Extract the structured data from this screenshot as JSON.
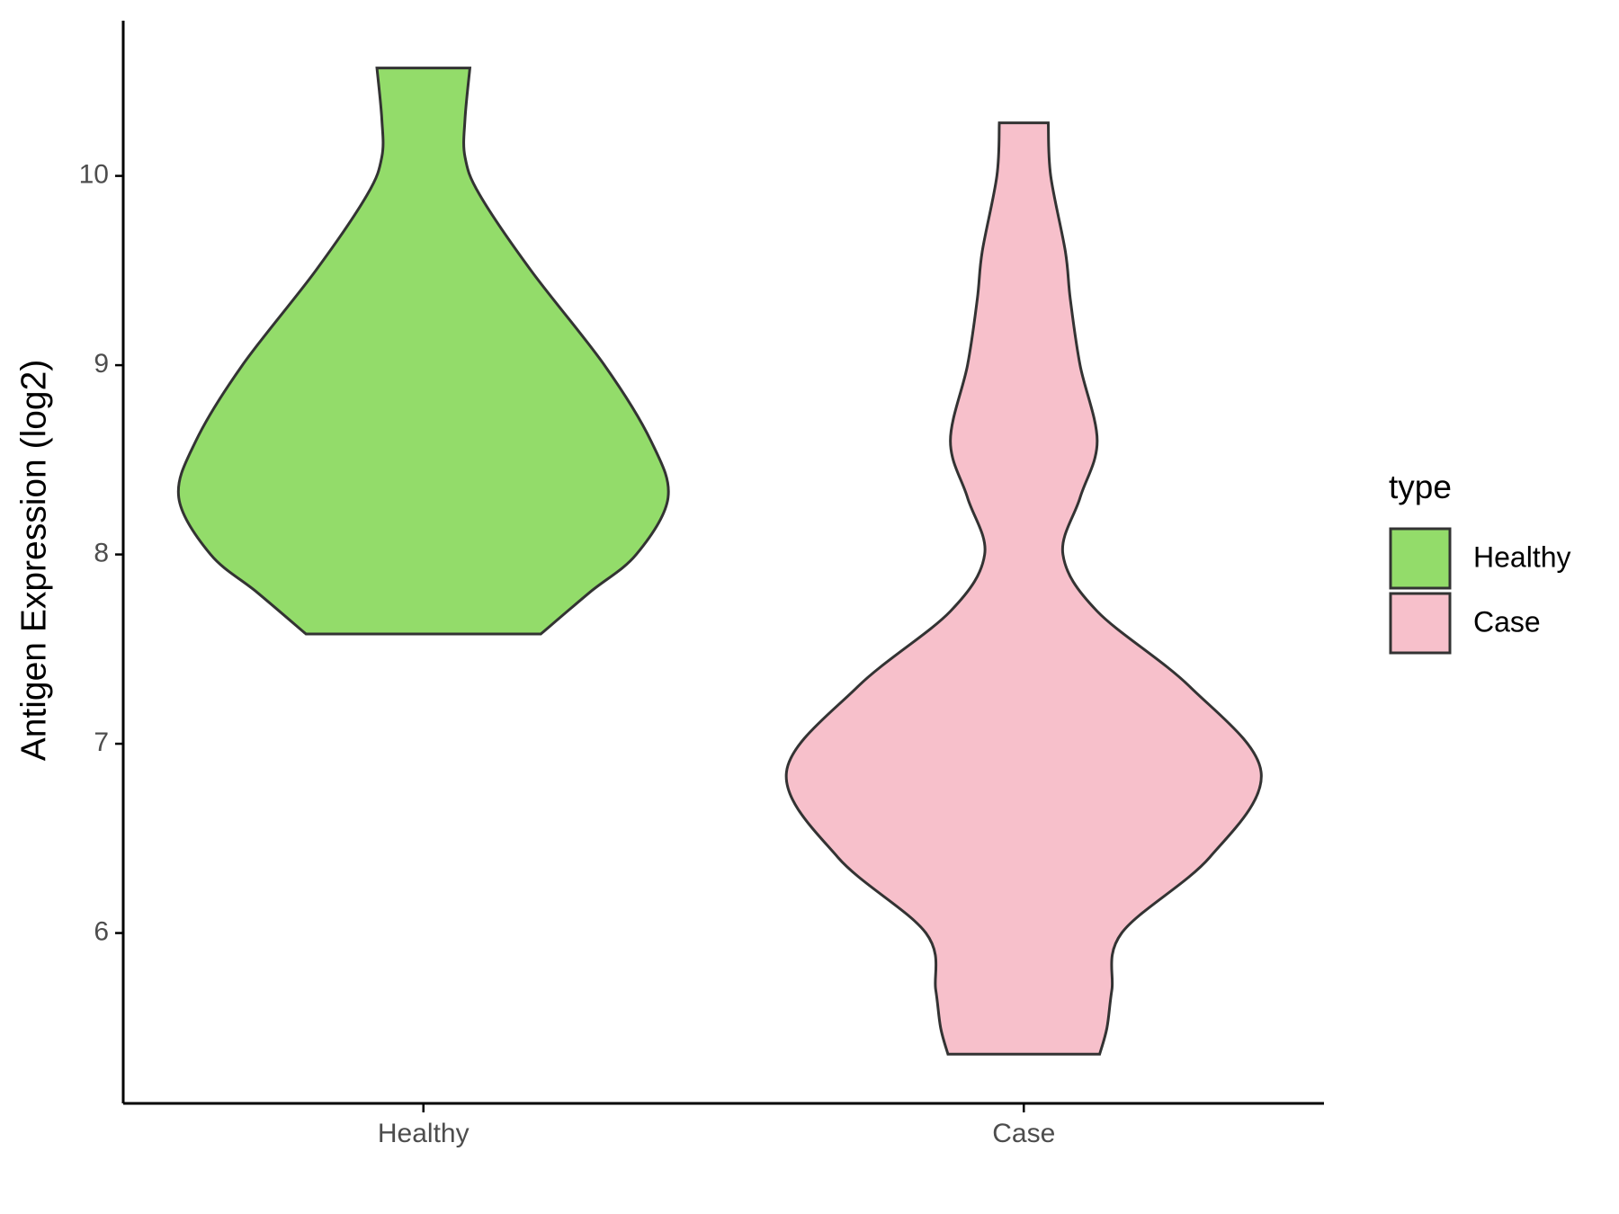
{
  "chart_data": {
    "type": "violin",
    "y_label": "Antigen Expression (log2)",
    "legend_title": "type",
    "categories": [
      "Healthy",
      "Case"
    ],
    "ylim": [
      5.1,
      10.82
    ],
    "yticks": [
      6,
      7,
      8,
      9,
      10
    ],
    "series": [
      {
        "name": "Healthy",
        "color": "#93dc6a",
        "y": [
          10.57,
          10.3,
          10.1,
          9.9,
          9.5,
          9.0,
          8.6,
          8.3,
          8.0,
          7.8,
          7.58
        ],
        "density": [
          0.19,
          0.17,
          0.17,
          0.23,
          0.44,
          0.74,
          0.93,
          1.0,
          0.87,
          0.68,
          0.48
        ]
      },
      {
        "name": "Case",
        "color": "#f7c0cb",
        "y": [
          10.28,
          10.0,
          9.6,
          9.35,
          9.0,
          8.6,
          8.3,
          8.0,
          7.7,
          7.3,
          6.85,
          6.4,
          6.0,
          5.7,
          5.5,
          5.36
        ],
        "density": [
          0.1,
          0.11,
          0.17,
          0.19,
          0.23,
          0.3,
          0.23,
          0.16,
          0.3,
          0.68,
          0.97,
          0.76,
          0.4,
          0.36,
          0.34,
          0.31
        ]
      }
    ]
  }
}
